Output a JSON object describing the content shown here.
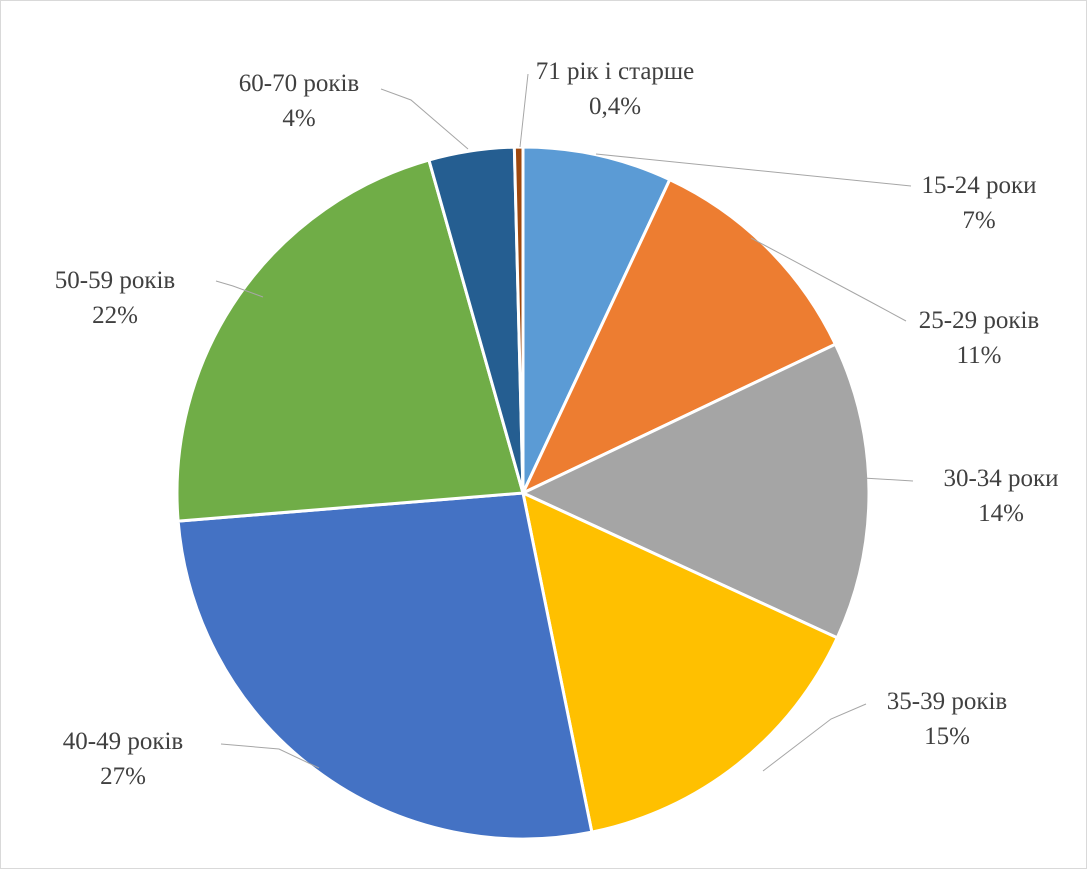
{
  "chart_data": {
    "type": "pie",
    "title": "",
    "legend": "none",
    "slices": [
      {
        "category": "15-24 роки",
        "value": 7,
        "value_label": "7%",
        "color": "#5B9BD5"
      },
      {
        "category": "25-29 років",
        "value": 11,
        "value_label": "11%",
        "color": "#ED7D31"
      },
      {
        "category": "30-34 роки",
        "value": 14,
        "value_label": "14%",
        "color": "#A5A5A5"
      },
      {
        "category": "35-39 років",
        "value": 15,
        "value_label": "15%",
        "color": "#FFC000"
      },
      {
        "category": "40-49 років",
        "value": 27,
        "value_label": "27%",
        "color": "#4472C4"
      },
      {
        "category": "50-59 років",
        "value": 22,
        "value_label": "22%",
        "color": "#70AD47"
      },
      {
        "category": "60-70 років",
        "value": 4,
        "value_label": "4%",
        "color": "#255E91"
      },
      {
        "category": "71 рік і старше",
        "value": 0.4,
        "value_label": "0,4%",
        "color": "#9E480E"
      }
    ]
  }
}
